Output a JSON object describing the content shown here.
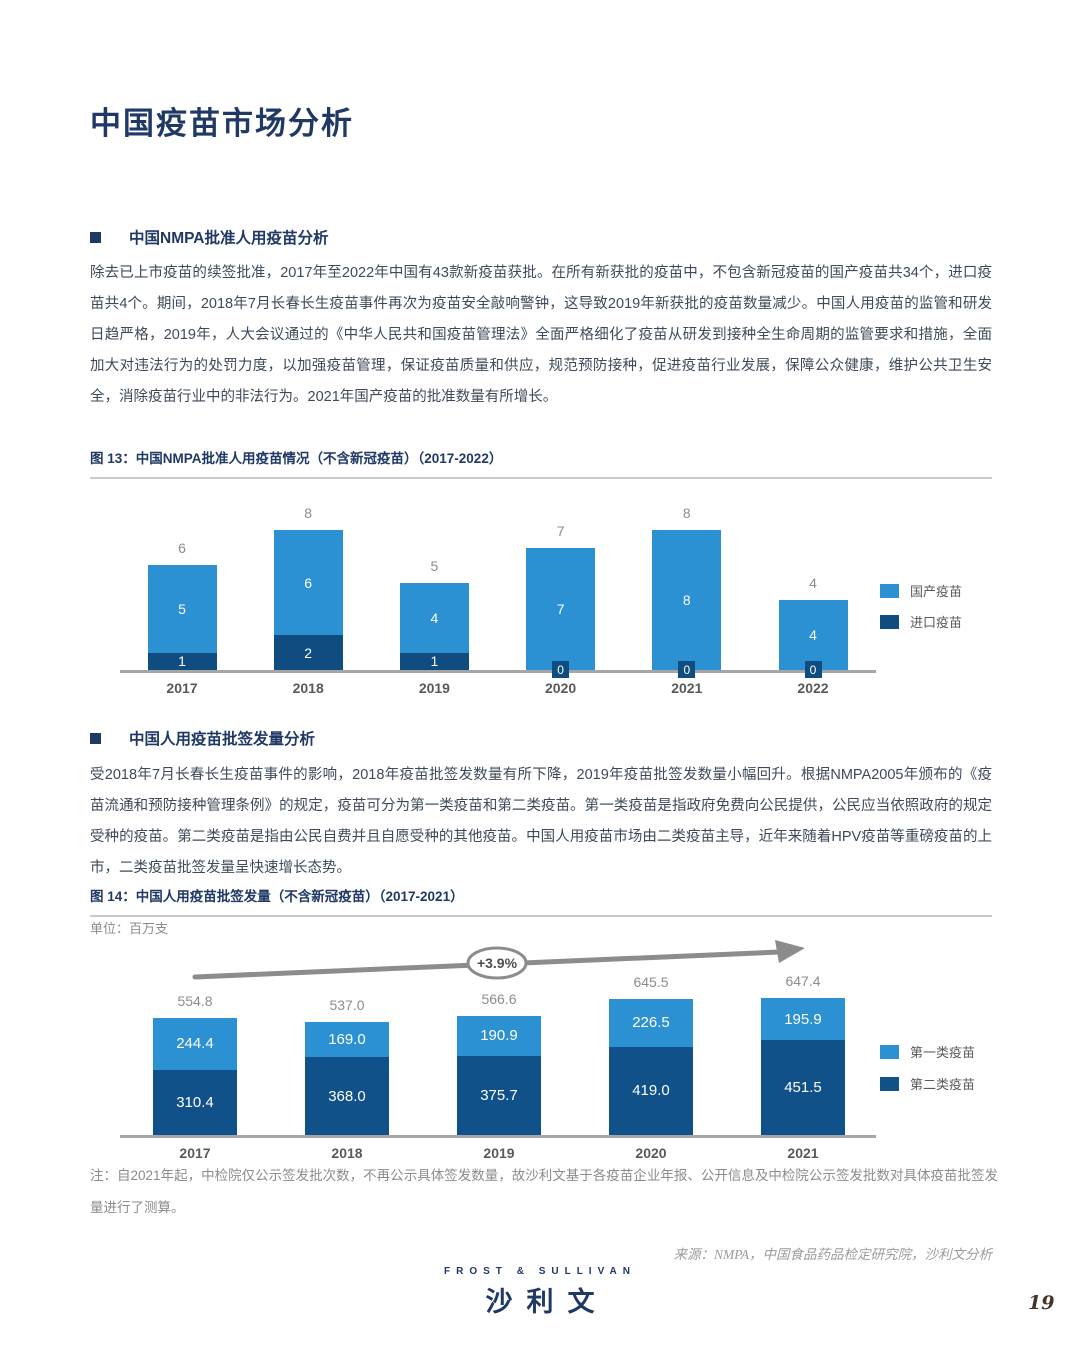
{
  "page": {
    "title": "中国疫苗市场分析",
    "source": "来源：NMPA，中国食品药品检定研究院，沙利文分析",
    "logo_en": "FROST & SULLIVAN",
    "logo_cn": "沙利文",
    "page_number": "19"
  },
  "sections": [
    {
      "heading": "中国NMPA批准人用疫苗分析",
      "body": "除去已上市疫苗的续签批准，2017年至2022年中国有43款新疫苗获批。在所有新获批的疫苗中，不包含新冠疫苗的国产疫苗共34个，进口疫苗共4个。期间，2018年7月长春长生疫苗事件再次为疫苗安全敲响警钟，这导致2019年新获批的疫苗数量减少。中国人用疫苗的监管和研发日趋严格，2019年，人大会议通过的《中华人民共和国疫苗管理法》全面严格细化了疫苗从研发到接种全生命周期的监管要求和措施，全面加大对违法行为的处罚力度，以加强疫苗管理，保证疫苗质量和供应，规范预防接种，促进疫苗行业发展，保障公众健康，维护公共卫生安全，消除疫苗行业中的非法行为。2021年国产疫苗的批准数量有所增长。"
    },
    {
      "heading": "中国人用疫苗批签发量分析",
      "body": "受2018年7月长春长生疫苗事件的影响，2018年疫苗批签发数量有所下降，2019年疫苗批签发数量小幅回升。根据NMPA2005年颁布的《疫苗流通和预防接种管理条例》的规定，疫苗可分为第一类疫苗和第二类疫苗。第一类疫苗是指政府免费向公民提供，公民应当依照政府的规定受种的疫苗。第二类疫苗是指由公民自费并且自愿受种的其他疫苗。中国人用疫苗市场由二类疫苗主导，近年来随着HPV疫苗等重磅疫苗的上市，二类疫苗批签发量呈快速增长态势。"
    }
  ],
  "figures": [
    {
      "caption": "图 13：中国NMPA批准人用疫苗情况（不含新冠疫苗）（2017-2022）"
    },
    {
      "caption": "图 14：中国人用疫苗批签发量（不含新冠疫苗）（2017-2021）",
      "unit": "单位：百万支",
      "note": "注：自2021年起，中检院仅公示签发批次数，不再公示具体签发数量，故沙利文基于各疫苗企业年报、公开信息及中检院公示签发批数对具体疫苗批签发量进行了测算。"
    }
  ],
  "chart_data": [
    {
      "id": "chart1",
      "type": "bar",
      "stacked": true,
      "title": "中国NMPA批准人用疫苗情况（不含新冠疫苗）（2017-2022）",
      "categories": [
        "2017",
        "2018",
        "2019",
        "2020",
        "2021",
        "2022"
      ],
      "series": [
        {
          "name": "进口疫苗",
          "position": "bottom",
          "color": "#0F4C80",
          "values": [
            1,
            2,
            1,
            0,
            0,
            0
          ]
        },
        {
          "name": "国产疫苗",
          "position": "top",
          "color": "#2B91D2",
          "values": [
            5,
            6,
            4,
            7,
            8,
            4
          ]
        }
      ],
      "totals": [
        6,
        8,
        5,
        7,
        8,
        4
      ],
      "ylim": [
        0,
        8
      ],
      "legend_position": "right",
      "grid": false
    },
    {
      "id": "chart2",
      "type": "bar",
      "stacked": true,
      "title": "中国人用疫苗批签发量（不含新冠疫苗）（2017-2021）",
      "unit": "百万支",
      "categories": [
        "2017",
        "2018",
        "2019",
        "2020",
        "2021"
      ],
      "series": [
        {
          "name": "第二类疫苗",
          "position": "bottom",
          "color": "#11518A",
          "values": [
            310.4,
            368.0,
            375.7,
            419.0,
            451.5
          ]
        },
        {
          "name": "第一类疫苗",
          "position": "top",
          "color": "#2B91D2",
          "values": [
            244.4,
            169.0,
            190.9,
            226.5,
            195.9
          ]
        }
      ],
      "totals": [
        554.8,
        537.0,
        566.6,
        645.5,
        647.4
      ],
      "annotation": "+3.9%",
      "ylim": [
        0,
        700
      ],
      "legend_position": "right",
      "grid": false
    }
  ]
}
